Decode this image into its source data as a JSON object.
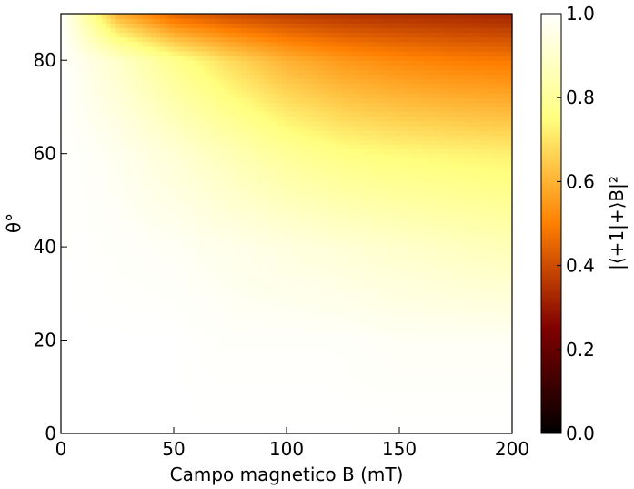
{
  "chart_data": {
    "type": "heatmap",
    "title": "",
    "xlabel": "Campo magnetico B (mT)",
    "ylabel": "θ°",
    "xlim": [
      0,
      200
    ],
    "ylim": [
      0,
      90
    ],
    "x_ticks": [
      0,
      50,
      100,
      150,
      200
    ],
    "x_tick_labels": [
      "0",
      "50",
      "100",
      "150",
      "200"
    ],
    "y_ticks": [
      0,
      20,
      40,
      60,
      80
    ],
    "y_tick_labels": [
      "0",
      "20",
      "40",
      "60",
      "80"
    ],
    "colorbar": {
      "label": "|⟨+1|+⟩B|²",
      "colormap": "afmhot",
      "range": [
        0,
        1
      ],
      "ticks": [
        0.0,
        0.2,
        0.4,
        0.6,
        0.8,
        1.0
      ],
      "tick_labels": [
        "0.0",
        "0.2",
        "0.4",
        "0.6",
        "0.8",
        "1.0"
      ]
    },
    "grid": false,
    "description_values": {
      "B_samples_mT": [
        0,
        25,
        50,
        75,
        100,
        125,
        150,
        175,
        200
      ],
      "theta_samples_deg": [
        0,
        20,
        40,
        60,
        80,
        90
      ],
      "note": "Rows = theta samples, columns = B samples"
    },
    "values": [
      [
        1.0,
        1.0,
        1.0,
        1.0,
        1.0,
        1.0,
        1.0,
        1.0,
        1.0
      ],
      [
        1.0,
        1.0,
        1.0,
        0.99,
        0.99,
        0.99,
        0.98,
        0.98,
        0.98
      ],
      [
        1.0,
        0.99,
        0.98,
        0.96,
        0.94,
        0.92,
        0.9,
        0.88,
        0.86
      ],
      [
        1.0,
        0.97,
        0.92,
        0.86,
        0.8,
        0.76,
        0.74,
        0.73,
        0.72
      ],
      [
        1.0,
        0.9,
        0.78,
        0.68,
        0.6,
        0.55,
        0.52,
        0.5,
        0.49
      ],
      [
        1.0,
        0.6,
        0.45,
        0.4,
        0.37,
        0.35,
        0.34,
        0.33,
        0.32
      ]
    ]
  }
}
